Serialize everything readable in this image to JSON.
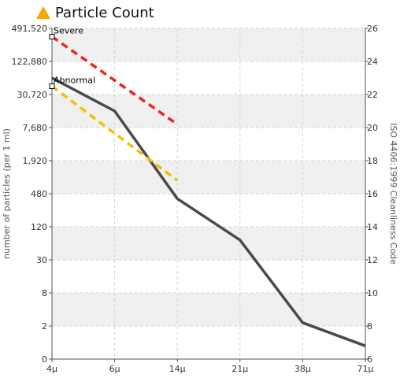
{
  "title": "Particle Count",
  "title_icon": "warning-triangle-icon",
  "colors": {
    "title_icon": "#f5a800",
    "measured": "#4a4a4a",
    "severe": "#ee2222",
    "abnormal": "#f5c000",
    "band": "#f0f0f0",
    "grid": "#d6d6d6",
    "axis": "#555555"
  },
  "chart_data": {
    "type": "line",
    "title": "Particle Count",
    "xlabel": "",
    "ylabel": "number of particles (per 1 ml)",
    "ylabel_right": "ISO 4406:1999 Cleanliness Code",
    "x_ticks": [
      "4μ",
      "6μ",
      "14μ",
      "21μ",
      "38μ",
      "71μ"
    ],
    "y_ticks": [
      "0",
      "2",
      "8",
      "30",
      "120",
      "480",
      "1,920",
      "7,680",
      "30,720",
      "122,880",
      "491,520"
    ],
    "y_right_ticks": [
      "6",
      "8",
      "10",
      "12",
      "14",
      "16",
      "18",
      "20",
      "22",
      "24",
      "26"
    ],
    "y_right_range": [
      6,
      26
    ],
    "y_scale": "log4 (ISO 4406 code scale)",
    "grid": true,
    "series": [
      {
        "key": "measured",
        "x": [
          "4μ",
          "6μ",
          "14μ",
          "21μ",
          "38μ",
          "71μ"
        ],
        "code": [
          23,
          21,
          15.7,
          13.2,
          8.2,
          6.8
        ]
      },
      {
        "key": "severe",
        "name": "Severe",
        "x": [
          "4μ",
          "14μ"
        ],
        "code": [
          25.5,
          20.2
        ],
        "style": "dashed"
      },
      {
        "key": "abnormal",
        "name": "Abnormal",
        "x": [
          "4μ",
          "14μ"
        ],
        "code": [
          22.5,
          16.8
        ],
        "style": "dashed"
      }
    ],
    "annotations": [
      {
        "text": "Severe",
        "x": "4μ",
        "code": 25.5
      },
      {
        "text": "Abnormal",
        "x": "4μ",
        "code": 22.5
      }
    ]
  }
}
